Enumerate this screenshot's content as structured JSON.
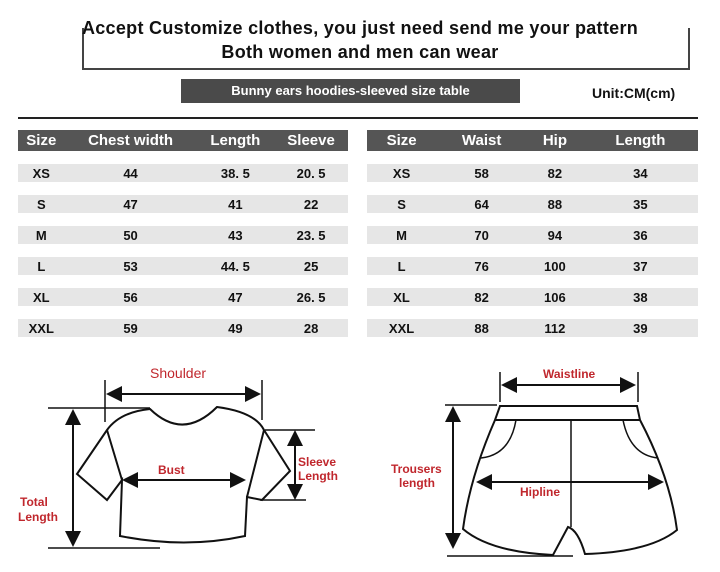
{
  "header": {
    "line1": "Accept Customize clothes, you just need send me your pattern",
    "line2": "Both women and men can wear"
  },
  "banner": "Bunny ears hoodies-sleeved size  table",
  "unit": "Unit:CM(cm)",
  "top_table": {
    "headers": [
      "Size",
      "Chest width",
      "Length",
      "Sleeve"
    ],
    "rows": [
      [
        "XS",
        "44",
        "38. 5",
        "20. 5"
      ],
      [
        "S",
        "47",
        "41",
        "22"
      ],
      [
        "M",
        "50",
        "43",
        "23. 5"
      ],
      [
        "L",
        "53",
        "44. 5",
        "25"
      ],
      [
        "XL",
        "56",
        "47",
        "26. 5"
      ],
      [
        "XXL",
        "59",
        "49",
        "28"
      ]
    ]
  },
  "bottom_table": {
    "headers": [
      "Size",
      "Waist",
      "Hip",
      "Length"
    ],
    "rows": [
      [
        "XS",
        "58",
        "82",
        "34"
      ],
      [
        "S",
        "64",
        "88",
        "35"
      ],
      [
        "M",
        "70",
        "94",
        "36"
      ],
      [
        "L",
        "76",
        "100",
        "37"
      ],
      [
        "XL",
        "82",
        "106",
        "38"
      ],
      [
        "XXL",
        "88",
        "112",
        "39"
      ]
    ]
  },
  "diagram": {
    "shoulder": "Shoulder",
    "bust": "Bust",
    "sleeve_length": [
      "Sleeve",
      "Length"
    ],
    "total_length": [
      "Total",
      "Length"
    ],
    "waistline": "Waistline",
    "hipline": "Hipline",
    "trousers_length": [
      "Trousers",
      "length"
    ],
    "label_color": "#c0272d"
  }
}
